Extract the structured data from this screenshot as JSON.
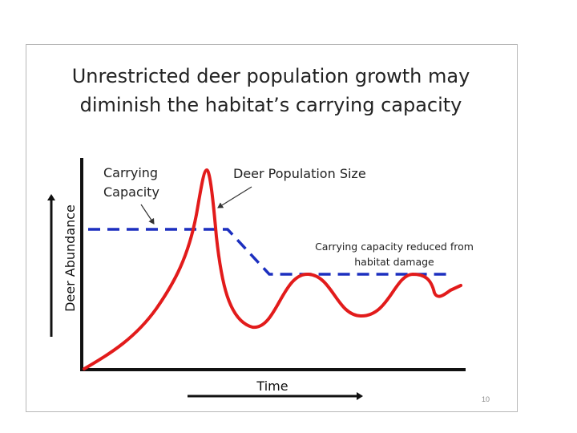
{
  "slide": {
    "title_line1": "Unrestricted deer population growth may",
    "title_line2": "diminish the habitat’s carrying capacity",
    "page_number": "10"
  },
  "diagram": {
    "y_axis_label": "Deer Abundance",
    "x_axis_label": "Time",
    "annotations": {
      "carrying_capacity_line1": "Carrying",
      "carrying_capacity_line2": "Capacity",
      "population_size": "Deer Population Size",
      "reduced_line1": "Carrying capacity reduced from",
      "reduced_line2": "habitat damage"
    },
    "colors": {
      "population_curve": "#e21b1b",
      "carrying_capacity_line": "#1c2fbf",
      "axes": "#111111"
    }
  }
}
